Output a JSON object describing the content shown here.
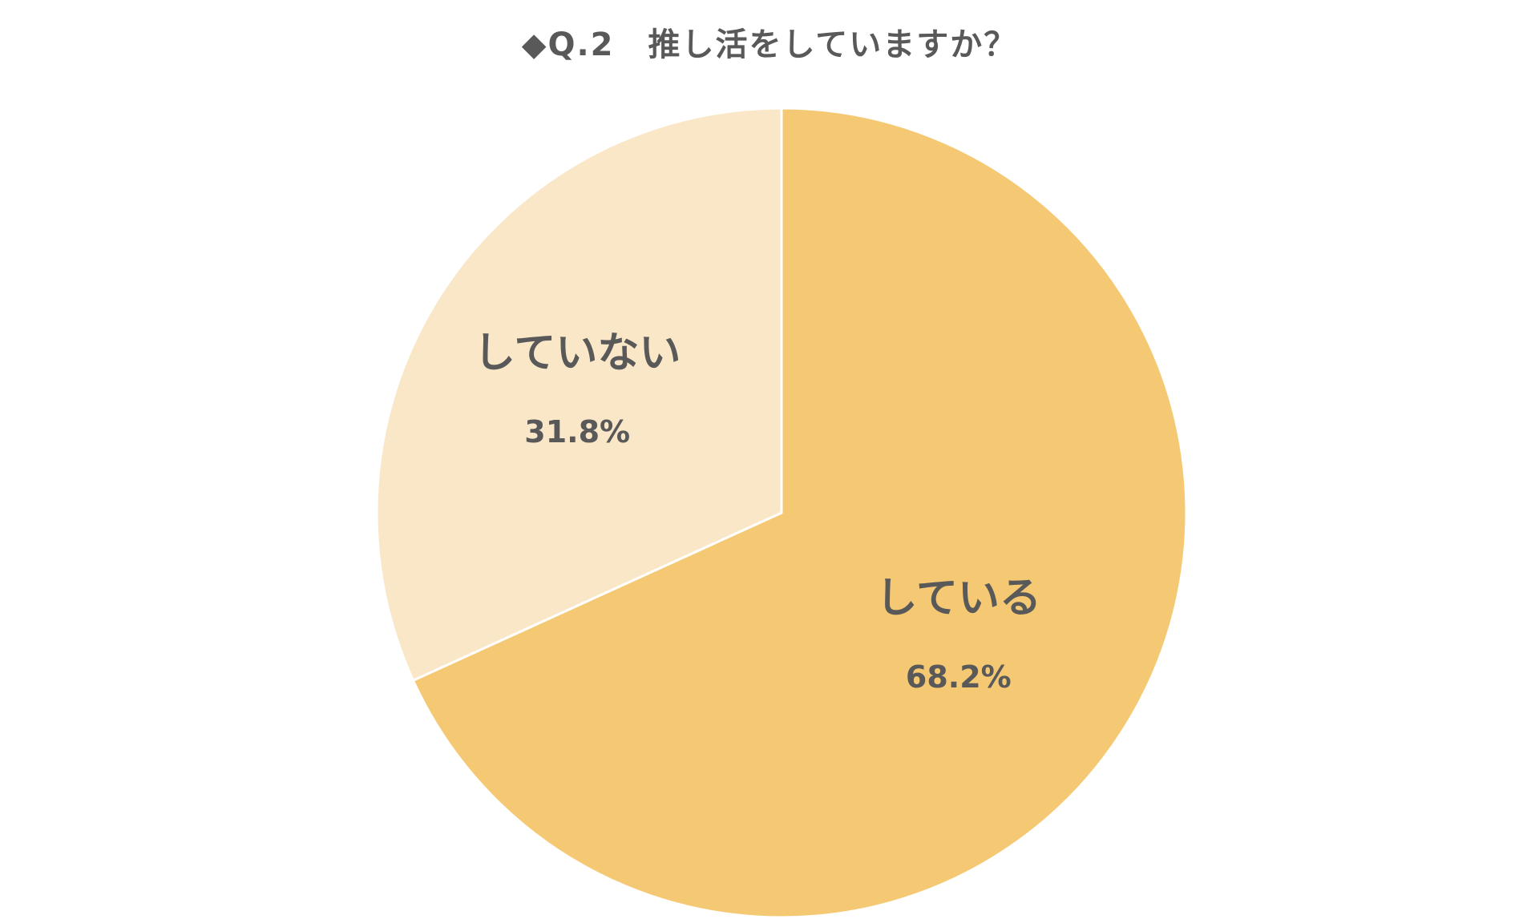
{
  "chart_data": {
    "type": "pie",
    "title": "◆Q.2　推し活をしていますか？",
    "start_angle_deg": 0,
    "direction": "clockwise",
    "slices": [
      {
        "label": "している",
        "value": 68.2,
        "value_label": "68.2%",
        "color": "#F5C974"
      },
      {
        "label": "していない",
        "value": 31.8,
        "value_label": "31.8%",
        "color": "#FAE7C8"
      }
    ],
    "slice_border_color": "#FFFFFF",
    "label_color": "#595959"
  }
}
